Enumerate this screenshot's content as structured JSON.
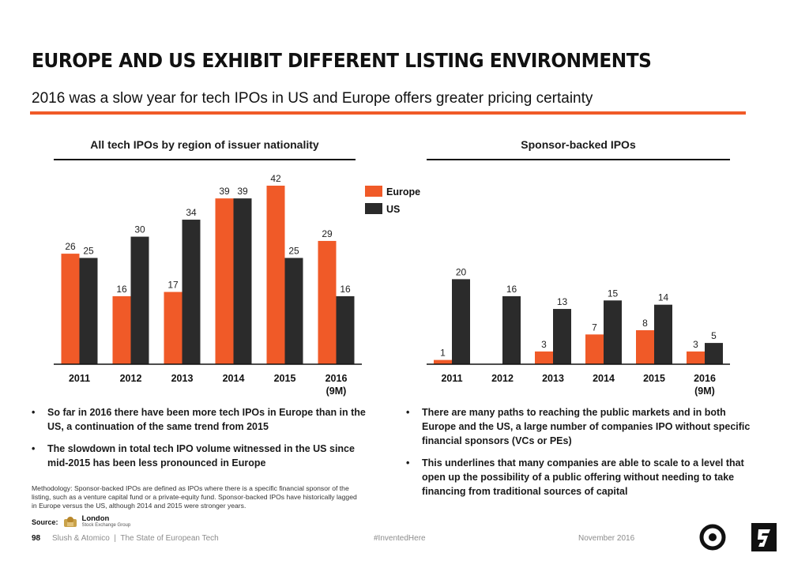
{
  "header": {
    "title": "EUROPE AND US EXHIBIT DIFFERENT LISTING ENVIRONMENTS",
    "subtitle": "2016 was a slow year for tech IPOs in US and Europe offers greater pricing certainty"
  },
  "colors": {
    "europe": "#f05a28",
    "us": "#2b2b2b",
    "accent": "#f05a28"
  },
  "chart_data": [
    {
      "type": "bar",
      "title": "All tech IPOs by region of issuer nationality",
      "categories": [
        "2011",
        "2012",
        "2013",
        "2014",
        "2015",
        "2016"
      ],
      "category_sublabels": [
        "",
        "",
        "",
        "",
        "",
        "(9M)"
      ],
      "series": [
        {
          "name": "Europe",
          "values": [
            26,
            16,
            17,
            39,
            42,
            29
          ]
        },
        {
          "name": "US",
          "values": [
            25,
            30,
            34,
            39,
            25,
            16
          ]
        }
      ],
      "ylim": [
        0,
        42
      ],
      "grid": false,
      "legend": "top-right"
    },
    {
      "type": "bar",
      "title": "Sponsor-backed IPOs",
      "categories": [
        "2011",
        "2012",
        "2013",
        "2014",
        "2015",
        "2016"
      ],
      "category_sublabels": [
        "",
        "",
        "",
        "",
        "",
        "(9M)"
      ],
      "series": [
        {
          "name": "Europe",
          "values": [
            1,
            null,
            3,
            7,
            8,
            3
          ]
        },
        {
          "name": "US",
          "values": [
            20,
            16,
            13,
            15,
            14,
            5
          ]
        }
      ],
      "ylim": [
        0,
        42
      ],
      "grid": false,
      "legend": "none"
    }
  ],
  "left_bullets": [
    "So far in 2016 there have been more tech IPOs in Europe than in the US, a continuation of the same trend from 2015",
    "The slowdown in total tech IPO volume witnessed in the US since mid-2015 has been less pronounced in Europe"
  ],
  "right_bullets": [
    "There are many paths to reaching the public markets and in both Europe and the US, a large number of companies IPO without specific financial sponsors (VCs or PEs)",
    "This underlines that many companies are able to scale to a level that open up the possibility of a public offering without needing to take financing from traditional sources of capital"
  ],
  "methodology": "Methodology: Sponsor-backed IPOs are defined as IPOs where there is a specific financial sponsor of the listing, such as a venture capital fund or a private-equity fund. Sponsor-backed IPOs have historically lagged in Europe versus the US, although 2014 and 2015 were stronger years.",
  "source": {
    "label": "Source:",
    "name": "London",
    "sub": "Stock Exchange Group"
  },
  "footer": {
    "page": "98",
    "left": "Slush & Atomico  |  The State of European Tech",
    "mid": "#InventedHere",
    "right": "November 2016"
  },
  "icons": [
    "slush-logo-icon",
    "atomico-logo-icon",
    "lse-crest-icon"
  ]
}
